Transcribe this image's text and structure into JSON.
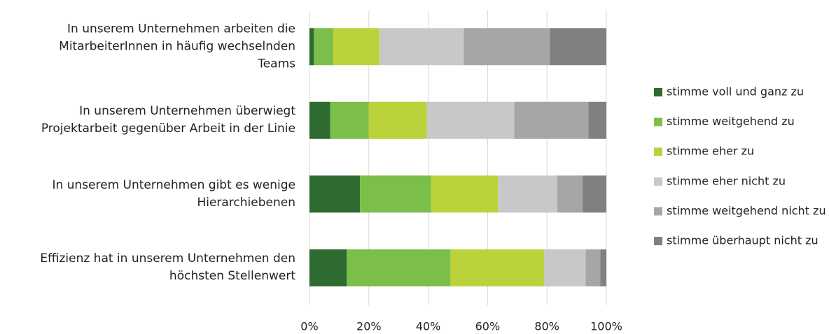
{
  "chart_data": {
    "type": "stacked-bar-horizontal",
    "categories": [
      "In unserem Unternehmen arbeiten die\nMitarbeiterInnen in häufig wechselnden\nTeams",
      "In unserem Unternehmen überwiegt\nProjektarbeit gegenüber Arbeit in der Linie",
      "In unserem Unternehmen gibt es wenige\nHierarchiebenen",
      "Effizienz hat in unserem Unternehmen den\nhöchsten Stellenwert"
    ],
    "series": [
      {
        "name": "stimme voll und ganz zu",
        "color": "#2e6b30",
        "values": [
          1.5,
          7,
          17,
          12.5
        ]
      },
      {
        "name": "stimme weitgehend zu",
        "color": "#7bbf4a",
        "values": [
          6.5,
          13,
          24,
          35
        ]
      },
      {
        "name": "stimme eher zu",
        "color": "#bcd23a",
        "values": [
          15.5,
          19.5,
          22.5,
          31.5
        ]
      },
      {
        "name": "stimme eher nicht zu",
        "color": "#c8c8c8",
        "values": [
          28.5,
          29.5,
          20,
          14
        ]
      },
      {
        "name": "stimme weitgehend nicht zu",
        "color": "#a6a6a6",
        "values": [
          29,
          25,
          8.5,
          5
        ]
      },
      {
        "name": "stimme überhaupt nicht zu",
        "color": "#808080",
        "values": [
          19,
          6,
          8,
          2
        ]
      }
    ],
    "xlim": [
      0,
      100
    ],
    "xticks": [
      {
        "value": 0,
        "label": "0%"
      },
      {
        "value": 20,
        "label": "20%"
      },
      {
        "value": 40,
        "label": "40%"
      },
      {
        "value": 60,
        "label": "60%"
      },
      {
        "value": 80,
        "label": "80%"
      },
      {
        "value": 100,
        "label": "100%"
      }
    ],
    "grid": true,
    "legend": "right"
  }
}
